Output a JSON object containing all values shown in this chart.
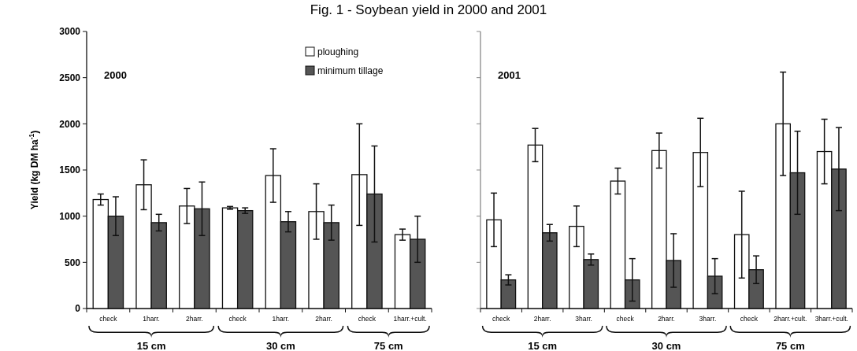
{
  "chart_data": [
    {
      "type": "bar",
      "title": "Fig. 1 - Soybean yield in 2000 and 2001",
      "ylabel": "Yield (kg DM ha$^{-1}$)",
      "categories": [
        "check",
        "1harr.",
        "2harr.",
        "check",
        "1harr.",
        "2harr.",
        "check",
        "1harr.+cult."
      ],
      "series": [
        {
          "name": "ploughing",
          "color": "#ffffff",
          "values": [
            1180,
            1340,
            1110,
            1090,
            1440,
            1050,
            1450,
            800
          ],
          "errors": [
            60,
            270,
            190,
            15,
            290,
            300,
            550,
            60
          ]
        },
        {
          "name": "minimum tillage",
          "color": "#555555",
          "values": [
            1000,
            930,
            1080,
            1060,
            940,
            930,
            1240,
            750
          ],
          "errors": [
            210,
            90,
            290,
            30,
            110,
            190,
            520,
            250
          ]
        }
      ],
      "ylim": [
        0,
        3000
      ],
      "yticks": [
        0,
        500,
        1000,
        1500,
        2000,
        2500,
        3000
      ],
      "legend": "top right",
      "grid": false,
      "annotations": [
        "2000",
        "15 cm",
        "30 cm",
        "75 cm"
      ]
    },
    {
      "type": "bar",
      "categories": [
        "check",
        "2harr.",
        "3harr.",
        "check",
        "2harr.",
        "3harr.",
        "check",
        "2harr.+cult.",
        "3harr.+cult."
      ],
      "series": [
        {
          "color": "#ffffff",
          "values": [
            960,
            1770,
            890,
            1380,
            1710,
            1690,
            800,
            2000,
            1700
          ],
          "errors": [
            290,
            180,
            220,
            140,
            190,
            370,
            470,
            560,
            350
          ]
        },
        {
          "color": "#555555",
          "values": [
            310,
            820,
            530,
            310,
            520,
            350,
            420,
            1470,
            1510
          ],
          "errors": [
            55,
            90,
            60,
            230,
            290,
            190,
            150,
            450,
            450
          ]
        }
      ],
      "ylim": [
        0,
        3000
      ],
      "yticks": [
        0,
        500,
        1000,
        1500,
        2000,
        2500,
        3000
      ],
      "tick_labels": "x",
      "grid": false,
      "annotations": [
        "2001",
        "15 cm",
        "30 cm",
        "75 cm"
      ]
    }
  ]
}
